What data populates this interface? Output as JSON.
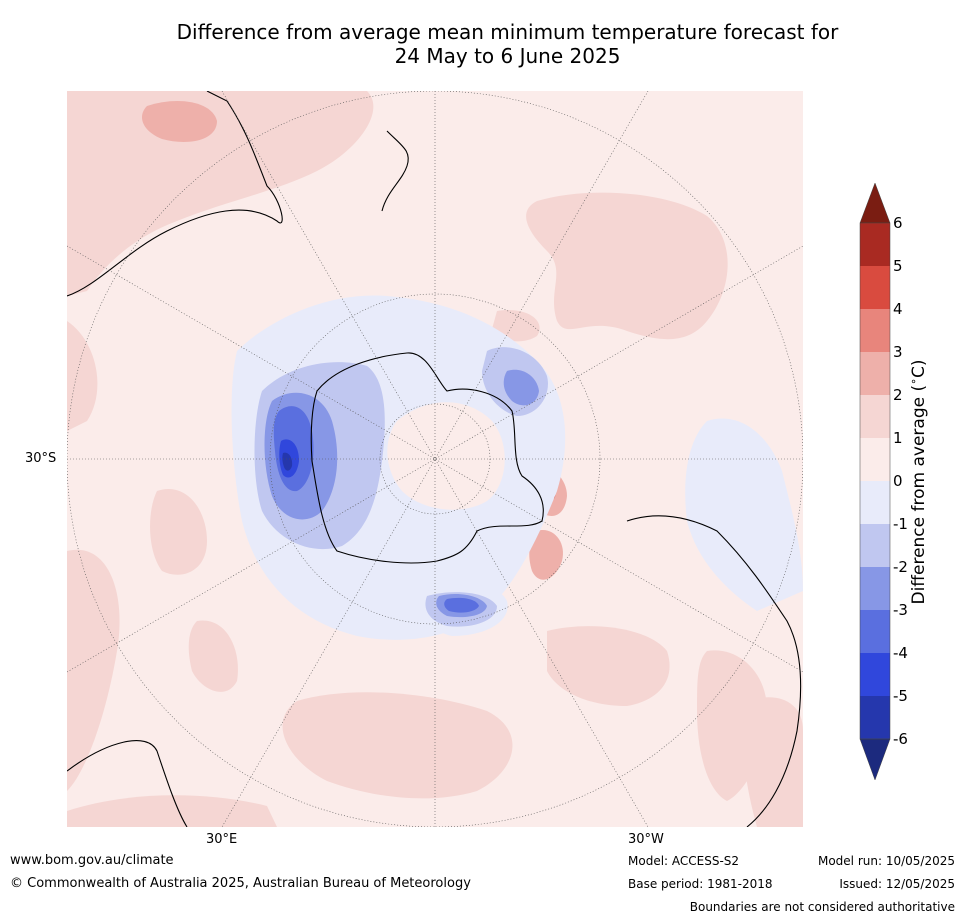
{
  "title": {
    "line1": "Difference from average mean minimum temperature forecast for",
    "line2": "24 May to 6 June 2025"
  },
  "map": {
    "projection": "south-polar-stereographic",
    "lat_label": "30°S",
    "lon_labels": {
      "left": "30°E",
      "right": "30°W"
    }
  },
  "colorbar": {
    "label": "Difference from average (",
    "label_unit": "∘",
    "label_end": "C)",
    "ticks": [
      "6",
      "5",
      "4",
      "3",
      "2",
      "1",
      "0",
      "-1",
      "-2",
      "-3",
      "-4",
      "-5",
      "-6"
    ],
    "colors": {
      "over_max": "#7a1d12",
      "5_to_6": "#a92a22",
      "4_to_5": "#d94b3f",
      "3_to_4": "#e8857c",
      "2_to_3": "#eeb0aa",
      "1_to_2": "#f5d6d3",
      "0_to_1": "#fbecea",
      "m1_to_0": "#e8ebfa",
      "m2_to_m1": "#c0c7f0",
      "m3_to_m2": "#8797e6",
      "m4_to_m3": "#5a6fdf",
      "m5_to_m4": "#3047dc",
      "m6_to_m5": "#2537ad",
      "under_min": "#1c2a7e"
    }
  },
  "footer": {
    "website": "www.bom.gov.au/climate",
    "copyright": "© Commonwealth of Australia 2025, Australian Bureau of Meteorology",
    "model": "Model: ACCESS-S2",
    "base_period": "Base period: 1981-2018",
    "model_run": "Model run: 10/05/2025",
    "issued": "Issued: 12/05/2025",
    "disclaimer": "Boundaries are not considered authoritative"
  }
}
